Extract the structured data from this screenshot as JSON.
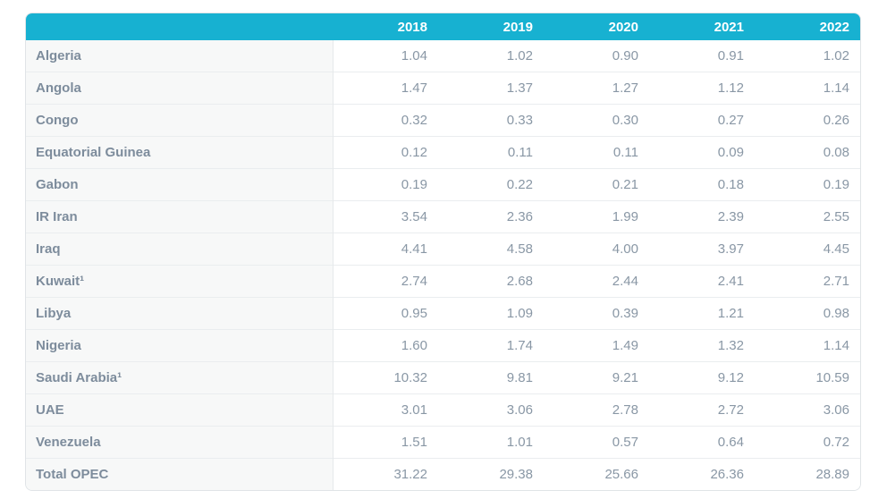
{
  "chart_data": {
    "type": "table",
    "columns": [
      "2018",
      "2019",
      "2020",
      "2021",
      "2022"
    ],
    "rows": [
      {
        "label": "Algeria",
        "values": [
          1.04,
          1.02,
          0.9,
          0.91,
          1.02
        ]
      },
      {
        "label": "Angola",
        "values": [
          1.47,
          1.37,
          1.27,
          1.12,
          1.14
        ]
      },
      {
        "label": "Congo",
        "values": [
          0.32,
          0.33,
          0.3,
          0.27,
          0.26
        ]
      },
      {
        "label": "Equatorial Guinea",
        "values": [
          0.12,
          0.11,
          0.11,
          0.09,
          0.08
        ]
      },
      {
        "label": "Gabon",
        "values": [
          0.19,
          0.22,
          0.21,
          0.18,
          0.19
        ]
      },
      {
        "label": "IR Iran",
        "values": [
          3.54,
          2.36,
          1.99,
          2.39,
          2.55
        ]
      },
      {
        "label": "Iraq",
        "values": [
          4.41,
          4.58,
          4.0,
          3.97,
          4.45
        ]
      },
      {
        "label": "Kuwait¹",
        "values": [
          2.74,
          2.68,
          2.44,
          2.41,
          2.71
        ]
      },
      {
        "label": "Libya",
        "values": [
          0.95,
          1.09,
          0.39,
          1.21,
          0.98
        ]
      },
      {
        "label": "Nigeria",
        "values": [
          1.6,
          1.74,
          1.49,
          1.32,
          1.14
        ]
      },
      {
        "label": "Saudi Arabia¹",
        "values": [
          10.32,
          9.81,
          9.21,
          9.12,
          10.59
        ]
      },
      {
        "label": "UAE",
        "values": [
          3.01,
          3.06,
          2.78,
          2.72,
          3.06
        ]
      },
      {
        "label": "Venezuela",
        "values": [
          1.51,
          1.01,
          0.57,
          0.64,
          0.72
        ]
      },
      {
        "label": "Total OPEC",
        "values": [
          31.22,
          29.38,
          25.66,
          26.36,
          28.89
        ]
      }
    ],
    "value_format": "2 decimal places",
    "layout_hints": {
      "header_position": "top",
      "values_aligned": "right",
      "grid": "horizontal row separators only"
    },
    "colors": {
      "header_bg": "#17b1d1",
      "header_text": "#ffffff",
      "label_text": "#7d8c9c",
      "value_text": "#8997a5",
      "label_column_bg": "#f7f8f8",
      "row_bg": "#ffffff",
      "border": "#e0e4e7"
    }
  }
}
